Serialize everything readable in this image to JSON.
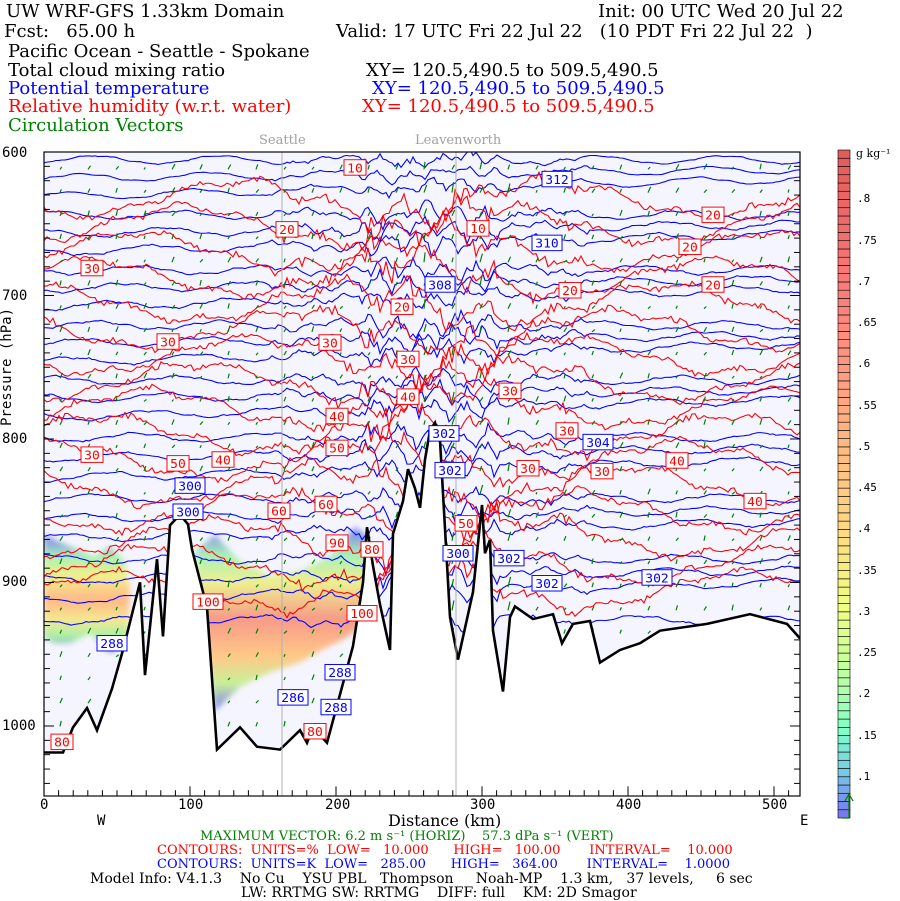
{
  "header": {
    "title": "UW WRF-GFS 1.33km Domain",
    "init": "Init: 00 UTC Wed 20 Jul 22",
    "fcst": "Fcst:   65.00 h",
    "valid": "Valid: 17 UTC Fri 22 Jul 22   (10 PDT Fri 22 Jul 22  )",
    "route": "Pacific Ocean - Seattle - Spokane",
    "fields": [
      {
        "name": "Total cloud mixing ratio",
        "xy": "XY= 120.5,490.5 to 509.5,490.5",
        "color": "#000000"
      },
      {
        "name": "Potential temperature",
        "xy": "XY= 120.5,490.5 to 509.5,490.5",
        "color": "#0000ff"
      },
      {
        "name": "Relative humidity (w.r.t. water)",
        "xy": "XY= 120.5,490.5 to 509.5,490.5",
        "color": "#ff0000"
      },
      {
        "name": "Circulation Vectors",
        "color": "#008000"
      }
    ]
  },
  "footer": {
    "max_vector": "MAXIMUM VECTOR: 6.2 m s⁻¹ (HORIZ)    57.3 dPa s⁻¹ (VERT)",
    "rh_contours": "CONTOURS:  UNITS=%  LOW=   10.000      HIGH=   100.00       INTERVAL=    10.000",
    "theta_contours": "CONTOURS:  UNITS=K  LOW=   285.00      HIGH=   364.00       INTERVAL=    1.0000",
    "model_info": "Model Info: V4.1.3    No Cu    YSU PBL   Thompson     Noah-MP    1.3 km,   37 levels,     6 sec",
    "physics": "LW: RRTMG SW: RRTMG    DIFF: full    KM: 2D Smagor"
  },
  "chart_data": {
    "type": "heatmap",
    "title": "Pacific Ocean - Seattle - Spokane cross section",
    "xlabel": "Distance (km)",
    "ylabel": "Pressure (hPa)",
    "x_direction_labels": {
      "left": "W",
      "right": "E"
    },
    "xlim": [
      0,
      517
    ],
    "ylim": [
      1050,
      600
    ],
    "xticks": [
      "0",
      "100",
      "200",
      "300",
      "400",
      "500"
    ],
    "yticks": [
      "600",
      "700",
      "800",
      "900",
      "1000"
    ],
    "locations": [
      {
        "name": "Seattle",
        "km": 163
      },
      {
        "name": "Leavenworth",
        "km": 282
      }
    ],
    "colorbar": {
      "units": "g kg⁻¹",
      "ticks": [
        ".8",
        ".75",
        ".7",
        ".65",
        ".6",
        ".55",
        ".5",
        ".45",
        ".4",
        ".35",
        ".3",
        ".25",
        ".2",
        ".15",
        ".1"
      ],
      "range": [
        0.05,
        0.86
      ]
    },
    "rh_contour_labels": [
      "10",
      "20",
      "10",
      "20",
      "20",
      "30",
      "20",
      "20",
      "20",
      "30",
      "30",
      "30",
      "30",
      "40",
      "40",
      "30",
      "30",
      "30",
      "40",
      "50",
      "40",
      "30",
      "40",
      "50",
      "60",
      "60",
      "90",
      "80",
      "50",
      "100",
      "100",
      "80",
      "80"
    ],
    "theta_contour_labels": [
      "312",
      "310",
      "308",
      "302",
      "304",
      "302",
      "300",
      "300",
      "300",
      "302",
      "302",
      "302",
      "288",
      "288",
      "286",
      "288"
    ],
    "colors": {
      "theta": "#0000ff",
      "rh": "#ff0000",
      "vectors": "#008000",
      "terrain": "#000000",
      "background": "#f5f5ff"
    }
  }
}
